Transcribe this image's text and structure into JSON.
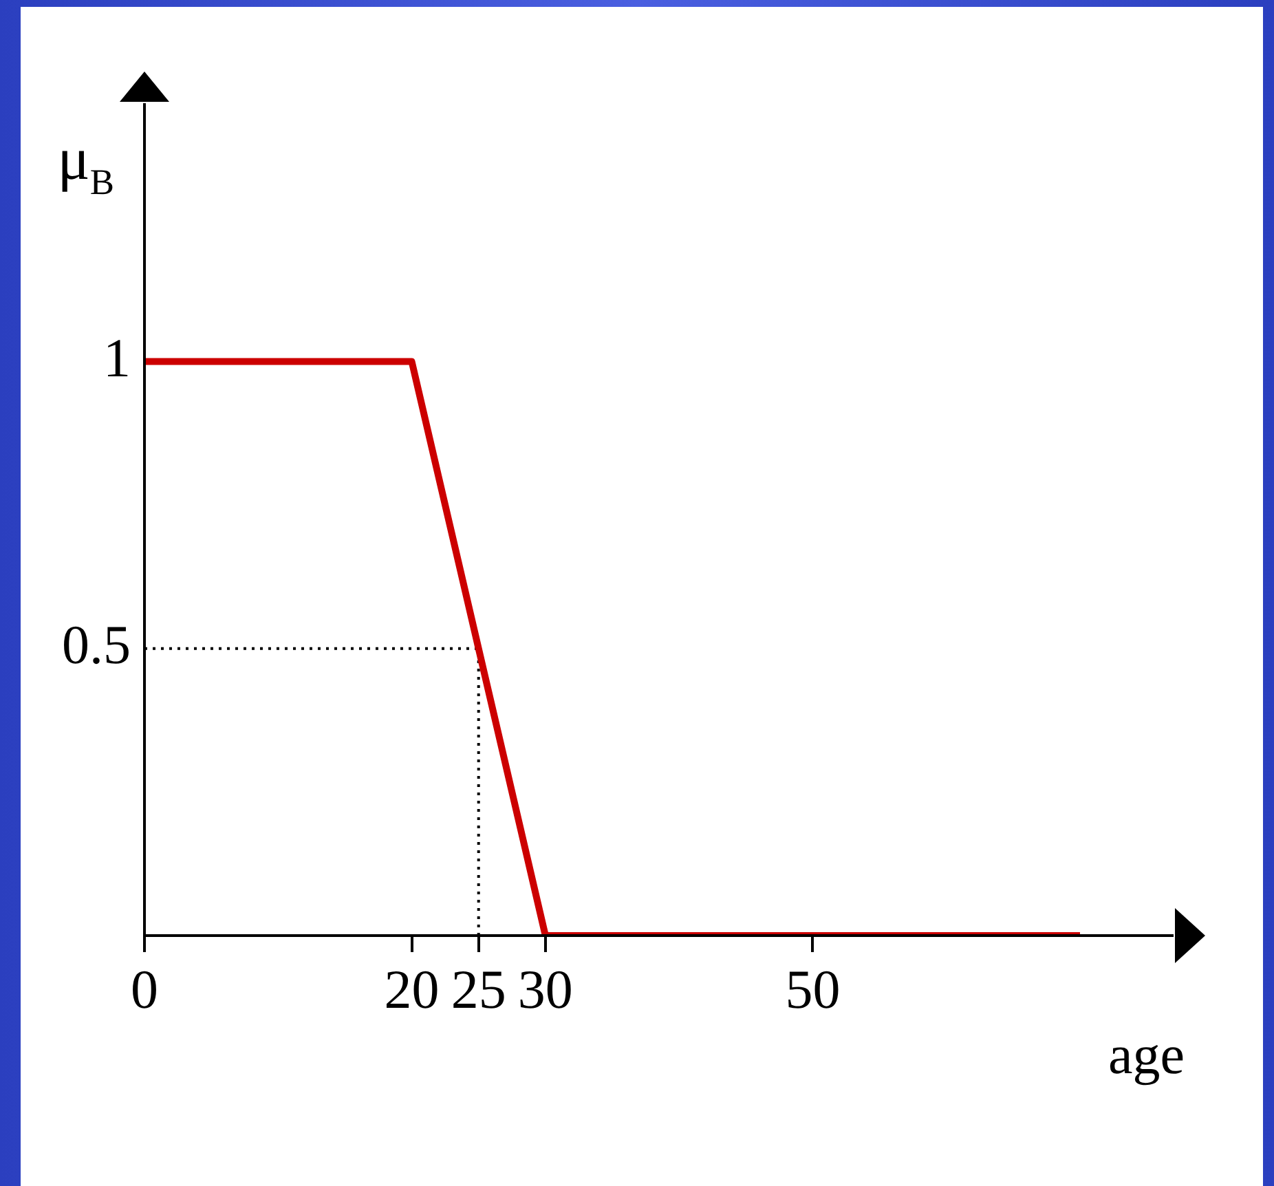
{
  "chart_data": {
    "type": "line",
    "xlabel": "age",
    "ylabel": "μ$_{B}$",
    "xlim": [
      0,
      77
    ],
    "ylim": [
      0,
      1.45
    ],
    "xticks": [
      0,
      20,
      25,
      30,
      50
    ],
    "yticks": [
      0.5,
      1
    ],
    "grid": false,
    "legend": false,
    "marker": "none",
    "line_style": "solid",
    "series": [
      {
        "color": "#cc0000",
        "x": [
          0,
          20,
          30,
          70
        ],
        "values": [
          1,
          1,
          0,
          0
        ]
      }
    ],
    "ref_lines": [
      {
        "axis": "y",
        "value": 0.5,
        "line_style": "dotted",
        "color": "#000000"
      },
      {
        "axis": "x",
        "value": 25,
        "line_style": "dotted",
        "color": "#000000"
      }
    ]
  }
}
